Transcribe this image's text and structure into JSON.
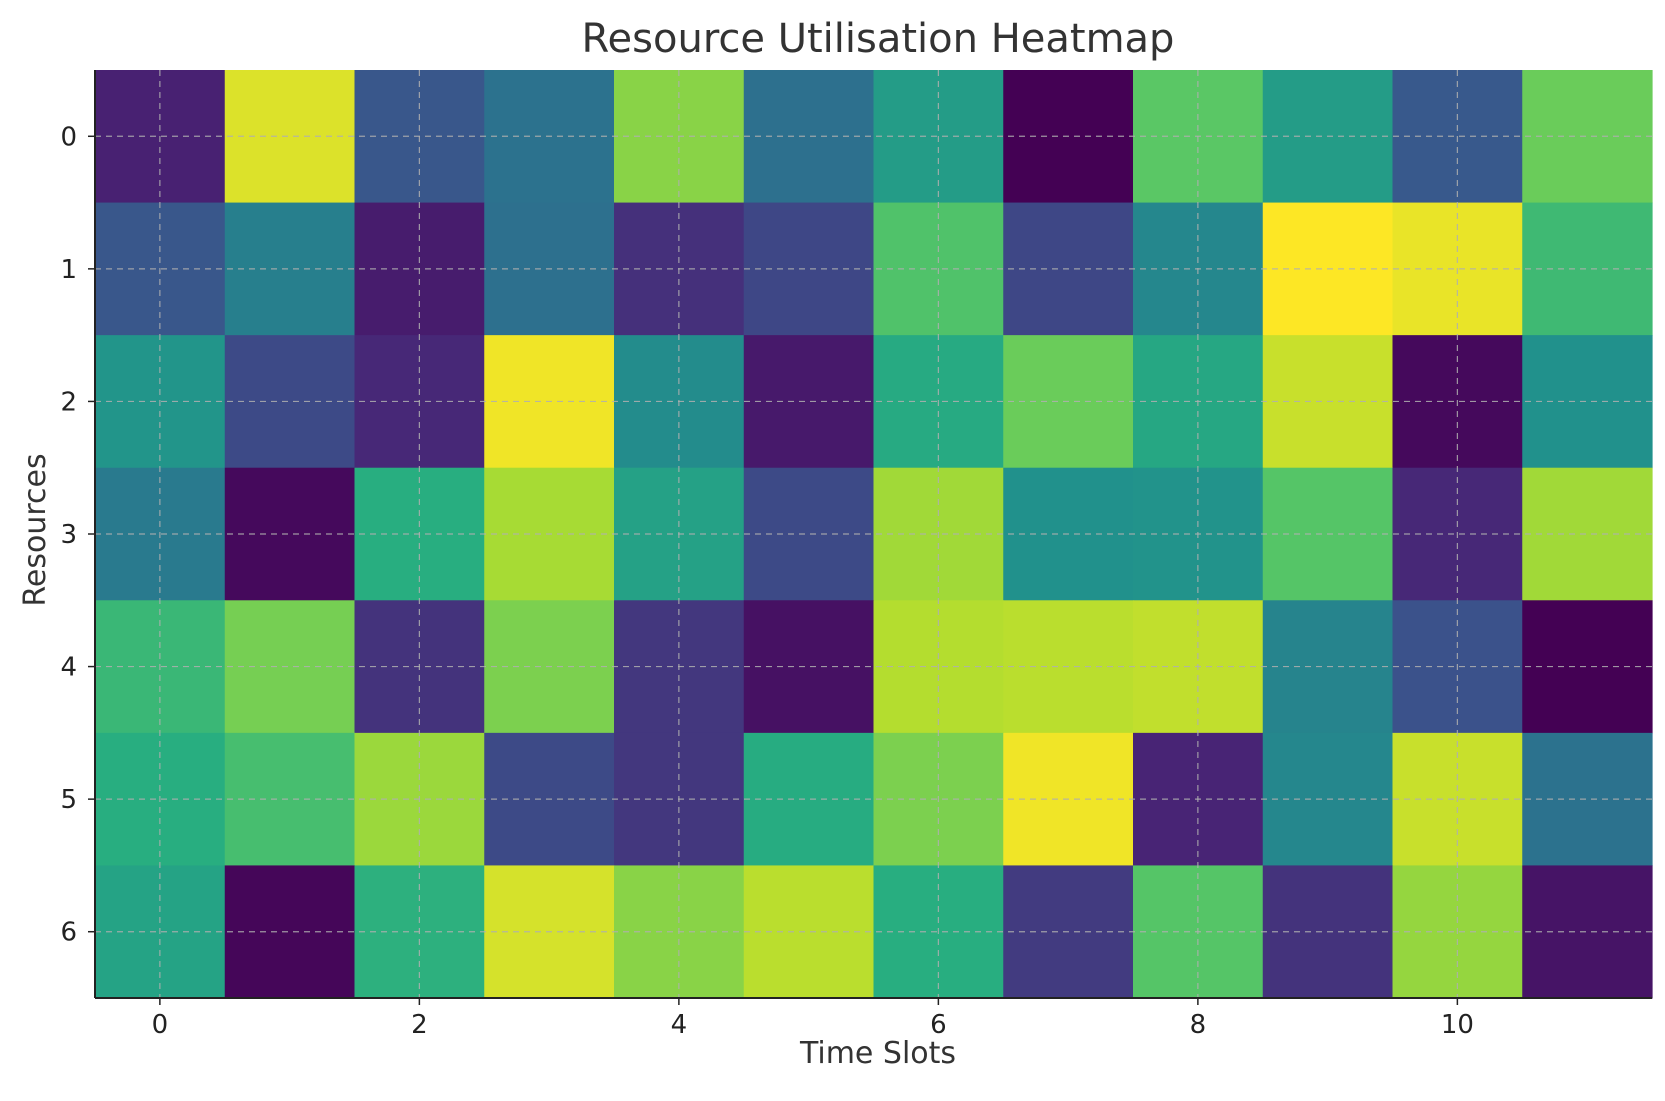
{
  "chart_data": {
    "type": "heatmap",
    "title": "Resource Utilisation Heatmap",
    "xlabel": "Time Slots",
    "ylabel": "Resources",
    "colormap": "viridis",
    "grid": true,
    "x": [
      0,
      1,
      2,
      3,
      4,
      5,
      6,
      7,
      8,
      9,
      10,
      11
    ],
    "y": [
      0,
      1,
      2,
      3,
      4,
      5,
      6
    ],
    "xticks": [
      0,
      2,
      4,
      6,
      8,
      10
    ],
    "yticks": [
      0,
      1,
      2,
      3,
      4,
      5,
      6
    ],
    "value_range": [
      0,
      1
    ],
    "values": [
      [
        0.12,
        0.95,
        0.27,
        0.38,
        0.82,
        0.37,
        0.55,
        0.0,
        0.74,
        0.55,
        0.28,
        0.77
      ],
      [
        0.27,
        0.43,
        0.1,
        0.37,
        0.16,
        0.22,
        0.72,
        0.22,
        0.46,
        1.0,
        0.97,
        0.68
      ],
      [
        0.52,
        0.23,
        0.14,
        0.98,
        0.48,
        0.09,
        0.61,
        0.77,
        0.6,
        0.92,
        0.03,
        0.5
      ],
      [
        0.41,
        0.03,
        0.63,
        0.87,
        0.57,
        0.23,
        0.86,
        0.5,
        0.51,
        0.73,
        0.14,
        0.86
      ],
      [
        0.67,
        0.79,
        0.17,
        0.8,
        0.18,
        0.06,
        0.89,
        0.9,
        0.91,
        0.45,
        0.25,
        0.0
      ],
      [
        0.63,
        0.7,
        0.85,
        0.23,
        0.18,
        0.62,
        0.8,
        0.98,
        0.13,
        0.46,
        0.92,
        0.38
      ],
      [
        0.58,
        0.02,
        0.64,
        0.94,
        0.82,
        0.9,
        0.63,
        0.19,
        0.73,
        0.17,
        0.84,
        0.07
      ]
    ]
  }
}
